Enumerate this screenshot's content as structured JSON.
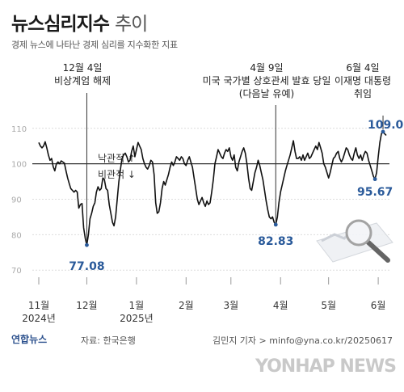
{
  "header": {
    "title_main": "뉴스심리지수",
    "title_light": "추이",
    "subtitle": "경제 뉴스에 나타난 경제 심리를 지수화한 지표"
  },
  "footer": {
    "logo_text": "연합뉴스",
    "source": "자료: 한국은행",
    "credit": "김민지 기자 > minfo@yna.co.kr/20250617",
    "watermark": "YONHAP NEWS"
  },
  "colors": {
    "line": "#111111",
    "accent": "#2a5a9a",
    "baseline": "#333333",
    "grid": "#dcdcdc"
  },
  "chart_data": {
    "type": "line",
    "y_ticks": [
      110,
      100,
      90,
      80,
      70
    ],
    "ylim": [
      68,
      112
    ],
    "baseline": 100,
    "x_ticks": [
      {
        "label": "11월",
        "sublabel": "2024년",
        "pos": 0
      },
      {
        "label": "12월",
        "sublabel": "",
        "pos": 30
      },
      {
        "label": "1월",
        "sublabel": "2025년",
        "pos": 61
      },
      {
        "label": "2월",
        "sublabel": "",
        "pos": 92
      },
      {
        "label": "3월",
        "sublabel": "",
        "pos": 120
      },
      {
        "label": "4월",
        "sublabel": "",
        "pos": 151
      },
      {
        "label": "5월",
        "sublabel": "",
        "pos": 181
      },
      {
        "label": "6월",
        "sublabel": "",
        "pos": 212
      }
    ],
    "series": [
      {
        "points": [
          [
            0,
            106.0
          ],
          [
            1,
            105.0
          ],
          [
            2,
            104.5
          ],
          [
            3,
            105.0
          ],
          [
            4,
            106.2
          ],
          [
            5,
            104.5
          ],
          [
            6,
            102.5
          ],
          [
            7,
            101.0
          ],
          [
            8,
            101.5
          ],
          [
            9,
            99.2
          ],
          [
            10,
            98.0
          ],
          [
            11,
            100.0
          ],
          [
            12,
            100.5
          ],
          [
            13,
            100.0
          ],
          [
            14,
            100.8
          ],
          [
            15,
            100.5
          ],
          [
            16,
            100.2
          ],
          [
            17,
            98.0
          ],
          [
            18,
            96.0
          ],
          [
            19,
            94.5
          ],
          [
            20,
            93.0
          ],
          [
            21,
            92.5
          ],
          [
            22,
            92.0
          ],
          [
            23,
            92.5
          ],
          [
            24,
            92.0
          ],
          [
            25,
            87.5
          ],
          [
            26,
            88.5
          ],
          [
            27,
            88.8
          ],
          [
            28,
            82.0
          ],
          [
            29,
            79.0
          ],
          [
            30,
            77.08
          ],
          [
            31,
            80.0
          ],
          [
            32,
            84.5
          ],
          [
            33,
            86.0
          ],
          [
            34,
            88.0
          ],
          [
            35,
            89.0
          ],
          [
            36,
            92.0
          ],
          [
            37,
            93.5
          ],
          [
            38,
            92.5
          ],
          [
            39,
            93.0
          ],
          [
            40,
            96.0
          ],
          [
            41,
            95.5
          ],
          [
            42,
            93.0
          ],
          [
            43,
            92.5
          ],
          [
            44,
            88.5
          ],
          [
            45,
            86.0
          ],
          [
            46,
            83.5
          ],
          [
            47,
            82.5
          ],
          [
            48,
            85.0
          ],
          [
            49,
            90.0
          ],
          [
            50,
            95.0
          ],
          [
            51,
            98.5
          ],
          [
            52,
            101.5
          ],
          [
            53,
            102.5
          ],
          [
            54,
            103.0
          ],
          [
            55,
            102.0
          ],
          [
            56,
            100.5
          ],
          [
            57,
            101.0
          ],
          [
            58,
            103.5
          ],
          [
            59,
            105.0
          ],
          [
            60,
            102.0
          ],
          [
            61,
            104.0
          ],
          [
            62,
            106.0
          ],
          [
            63,
            105.0
          ],
          [
            64,
            104.0
          ],
          [
            65,
            101.5
          ],
          [
            66,
            100.0
          ],
          [
            67,
            99.0
          ],
          [
            68,
            98.5
          ],
          [
            69,
            99.5
          ],
          [
            70,
            101.0
          ],
          [
            71,
            100.5
          ],
          [
            72,
            97.0
          ],
          [
            73,
            89.0
          ],
          [
            74,
            86.0
          ],
          [
            75,
            86.5
          ],
          [
            76,
            89.0
          ],
          [
            77,
            93.0
          ],
          [
            78,
            95.0
          ],
          [
            79,
            94.0
          ],
          [
            80,
            95.5
          ],
          [
            81,
            97.0
          ],
          [
            82,
            99.0
          ],
          [
            83,
            100.5
          ],
          [
            84,
            99.5
          ],
          [
            85,
            100.5
          ],
          [
            86,
            102.0
          ],
          [
            87,
            101.5
          ],
          [
            88,
            101.0
          ],
          [
            89,
            102.0
          ],
          [
            90,
            101.5
          ],
          [
            91,
            100.0
          ],
          [
            92,
            99.5
          ],
          [
            93,
            101.0
          ],
          [
            94,
            102.0
          ],
          [
            95,
            100.5
          ],
          [
            96,
            99.0
          ],
          [
            97,
            96.0
          ],
          [
            98,
            93.0
          ],
          [
            99,
            90.0
          ],
          [
            100,
            88.5
          ],
          [
            101,
            89.5
          ],
          [
            102,
            90.5
          ],
          [
            103,
            89.0
          ],
          [
            104,
            88.0
          ],
          [
            105,
            89.5
          ],
          [
            106,
            88.5
          ],
          [
            107,
            89.0
          ],
          [
            108,
            92.0
          ],
          [
            109,
            95.5
          ],
          [
            110,
            100.0
          ],
          [
            111,
            102.0
          ],
          [
            112,
            104.0
          ],
          [
            113,
            103.0
          ],
          [
            114,
            102.0
          ],
          [
            115,
            101.5
          ],
          [
            116,
            103.0
          ],
          [
            117,
            104.0
          ],
          [
            118,
            103.5
          ],
          [
            119,
            104.5
          ],
          [
            120,
            102.0
          ],
          [
            121,
            101.0
          ],
          [
            122,
            102.5
          ],
          [
            123,
            99.0
          ],
          [
            124,
            98.0
          ],
          [
            125,
            100.5
          ],
          [
            126,
            102.0
          ],
          [
            127,
            103.5
          ],
          [
            128,
            104.5
          ],
          [
            129,
            103.0
          ],
          [
            130,
            100.0
          ],
          [
            131,
            96.0
          ],
          [
            132,
            93.0
          ],
          [
            133,
            92.5
          ],
          [
            134,
            95.0
          ],
          [
            135,
            97.5
          ],
          [
            136,
            99.0
          ],
          [
            137,
            101.0
          ],
          [
            138,
            99.5
          ],
          [
            139,
            97.5
          ],
          [
            140,
            95.5
          ],
          [
            141,
            92.5
          ],
          [
            142,
            89.5
          ],
          [
            143,
            87.0
          ],
          [
            144,
            85.0
          ],
          [
            145,
            84.5
          ],
          [
            146,
            85.0
          ],
          [
            147,
            83.5
          ],
          [
            148,
            82.83
          ],
          [
            149,
            85.0
          ],
          [
            150,
            89.0
          ],
          [
            151,
            92.0
          ],
          [
            152,
            94.0
          ],
          [
            153,
            96.0
          ],
          [
            154,
            98.0
          ],
          [
            155,
            99.5
          ],
          [
            156,
            101.0
          ],
          [
            157,
            102.5
          ],
          [
            158,
            104.5
          ],
          [
            159,
            106.5
          ],
          [
            160,
            103.5
          ],
          [
            161,
            101.5
          ],
          [
            162,
            101.5
          ],
          [
            163,
            102.0
          ],
          [
            164,
            101.0
          ],
          [
            165,
            102.5
          ],
          [
            166,
            101.0
          ],
          [
            167,
            102.0
          ],
          [
            168,
            103.0
          ],
          [
            169,
            101.5
          ],
          [
            170,
            102.0
          ],
          [
            171,
            103.0
          ],
          [
            172,
            104.0
          ],
          [
            173,
            105.0
          ],
          [
            174,
            104.0
          ],
          [
            175,
            106.0
          ],
          [
            176,
            104.5
          ],
          [
            177,
            103.0
          ],
          [
            178,
            100.0
          ],
          [
            179,
            99.0
          ],
          [
            180,
            97.5
          ],
          [
            181,
            96.0
          ],
          [
            182,
            97.5
          ],
          [
            183,
            99.5
          ],
          [
            184,
            101.5
          ],
          [
            185,
            102.0
          ],
          [
            186,
            103.0
          ],
          [
            187,
            103.5
          ],
          [
            188,
            101.5
          ],
          [
            189,
            100.5
          ],
          [
            190,
            101.5
          ],
          [
            191,
            103.0
          ],
          [
            192,
            104.5
          ],
          [
            193,
            104.0
          ],
          [
            194,
            102.5
          ],
          [
            195,
            101.5
          ],
          [
            196,
            101.0
          ],
          [
            197,
            103.0
          ],
          [
            198,
            104.5
          ],
          [
            199,
            102.5
          ],
          [
            200,
            101.5
          ],
          [
            201,
            102.5
          ],
          [
            202,
            101.0
          ],
          [
            203,
            102.5
          ],
          [
            204,
            103.5
          ],
          [
            205,
            103.0
          ],
          [
            206,
            101.0
          ],
          [
            207,
            99.5
          ],
          [
            208,
            98.0
          ],
          [
            209,
            96.5
          ],
          [
            210,
            95.67
          ],
          [
            211,
            97.5
          ],
          [
            212,
            102.0
          ],
          [
            213,
            106.0
          ],
          [
            214,
            108.5
          ],
          [
            215,
            109.05
          ],
          [
            216,
            108.5
          ],
          [
            217,
            108.0
          ]
        ]
      }
    ],
    "annotations": [
      {
        "label": "12월 4일\n비상계엄 해제",
        "x": 30,
        "value": "77.08",
        "y": 77.08
      },
      {
        "label": "4월 9일\n미국 국가별 상호관세 발효 당일\n(다음날 유예)",
        "x": 148,
        "value": "82.83",
        "y": 82.83
      },
      {
        "label": "6월 4일\n이재명 대통령\n취임",
        "x": 215,
        "value": "109.05",
        "y": 109.05
      },
      {
        "label": "",
        "x": 210,
        "value": "95.67",
        "y": 95.67
      }
    ],
    "legend": {
      "up": "낙관적 ↑",
      "down": "비관적 ↓"
    }
  }
}
